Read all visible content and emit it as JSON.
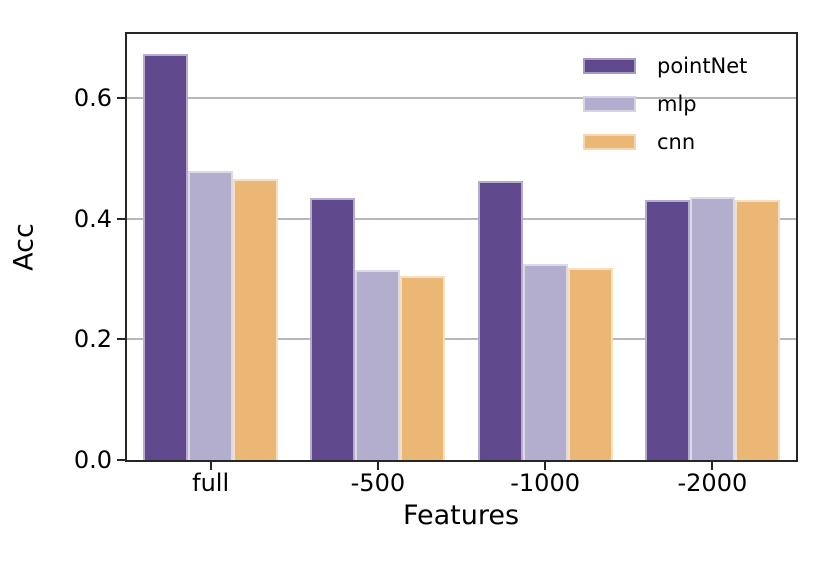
{
  "chart_data": {
    "type": "bar",
    "title": "",
    "xlabel": "Features",
    "ylabel": "Acc",
    "categories": [
      "full",
      "-500",
      "-1000",
      "-2000"
    ],
    "series": [
      {
        "name": "pointNet",
        "color": "#5f488c",
        "values": [
          0.674,
          0.435,
          0.463,
          0.431
        ]
      },
      {
        "name": "mlp",
        "color": "#b3aecd",
        "values": [
          0.48,
          0.316,
          0.325,
          0.436
        ]
      },
      {
        "name": "cnn",
        "color": "#eab874",
        "values": [
          0.466,
          0.306,
          0.318,
          0.432
        ]
      }
    ],
    "yticks": [
      0.0,
      0.2,
      0.4,
      0.6
    ],
    "ylim": [
      0,
      0.707
    ],
    "grid": "horizontal",
    "grid_color": "#b8b8b8",
    "spine_color": "#262626",
    "bar_edge_color": "rgba(255,255,255,0.55)",
    "text_color": "#000000",
    "legend_position": "upper right",
    "legend_frame": false
  }
}
